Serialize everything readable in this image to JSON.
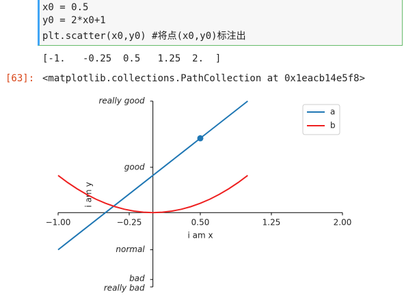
{
  "notebook": {
    "code_lines": [
      "x0 = 0.5",
      "y0 = 2*x0+1",
      "plt.scatter(x0,y0) #将点(x0,y0)标注出"
    ],
    "output_array": "[-1.   -0.25  0.5   1.25  2.  ]",
    "prompt": "[63]:",
    "output_repr": "<matplotlib.collections.PathCollection at 0x1eacb14e5f8>"
  },
  "chart_data": {
    "type": "line",
    "x_label": "i am x",
    "y_label": "i am y",
    "x": [
      -1,
      -0.9,
      -0.8,
      -0.7,
      -0.6,
      -0.5,
      -0.4,
      -0.3,
      -0.2,
      -0.1,
      0,
      0.1,
      0.2,
      0.3,
      0.4,
      0.5,
      0.6,
      0.7,
      0.8,
      0.9,
      1
    ],
    "series": [
      {
        "name": "a",
        "color": "#1f77b4",
        "values": [
          -1,
          -0.8,
          -0.6,
          -0.4,
          -0.2,
          0,
          0.2,
          0.4,
          0.6,
          0.8,
          1,
          1.2,
          1.4,
          1.6,
          1.8,
          2,
          2.2,
          2.4,
          2.6,
          2.8,
          3
        ]
      },
      {
        "name": "b",
        "color": "#ee2020",
        "values": [
          1,
          0.81,
          0.64,
          0.49,
          0.36,
          0.25,
          0.16,
          0.09,
          0.04,
          0.01,
          0,
          0.01,
          0.04,
          0.09,
          0.16,
          0.25,
          0.36,
          0.49,
          0.64,
          0.81,
          1
        ]
      }
    ],
    "scatter": {
      "x": [
        0.5
      ],
      "values": [
        2
      ],
      "color": "#1f77b4"
    },
    "xlim": [
      -1,
      2
    ],
    "ylim": [
      -2,
      3
    ],
    "xticks": [
      {
        "value": -1,
        "label": "−1.00"
      },
      {
        "value": -0.25,
        "label": "−0.25"
      },
      {
        "value": 0.5,
        "label": "0.50"
      },
      {
        "value": 1.25,
        "label": "1.25"
      },
      {
        "value": 2,
        "label": "2.00"
      }
    ],
    "yticks": [
      {
        "value": -2,
        "label": "really bad"
      },
      {
        "value": -1.8,
        "label": "bad"
      },
      {
        "value": -1,
        "label": "normal"
      },
      {
        "value": 1.22,
        "label": "good"
      },
      {
        "value": 3,
        "label": "really good"
      }
    ],
    "legend": "upper right"
  }
}
